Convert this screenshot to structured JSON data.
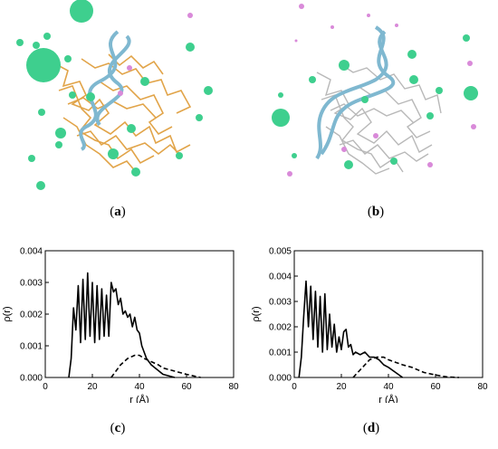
{
  "captions": {
    "a": {
      "open": "(",
      "letter": "a",
      "close": ")"
    },
    "b": {
      "open": "(",
      "letter": "b",
      "close": ")"
    },
    "c": {
      "open": "(",
      "letter": "c",
      "close": ")"
    },
    "d": {
      "open": "(",
      "letter": "d",
      "close": ")"
    }
  },
  "colors": {
    "ion_green": "#3ecf8e",
    "ion_pink": "#d98ad9",
    "dna": "#7fb8d0",
    "polymer_a": "#e0a040",
    "polymer_b": "#b8b8b8"
  },
  "chart_data": [
    {
      "panel": "c",
      "type": "line",
      "xlabel": "r (Å)",
      "ylabel": "ρ(r)",
      "xlim": [
        0,
        80
      ],
      "ylim": [
        0,
        0.004
      ],
      "xticks": [
        "0",
        "20",
        "40",
        "60",
        "80"
      ],
      "yticks": [
        "0.000",
        "0.001",
        "0.002",
        "0.003",
        "0.004"
      ],
      "series": [
        {
          "style": "solid",
          "x": [
            10,
            11,
            12,
            13,
            14,
            15,
            16,
            17,
            18,
            19,
            20,
            21,
            22,
            23,
            24,
            25,
            26,
            27,
            28,
            29,
            30,
            31,
            32,
            33,
            34,
            35,
            36,
            37,
            38,
            39,
            40,
            41,
            42,
            43,
            45,
            50,
            55
          ],
          "y": [
            0.0,
            0.0006,
            0.0022,
            0.0015,
            0.0029,
            0.0011,
            0.0031,
            0.0012,
            0.0033,
            0.0013,
            0.003,
            0.0011,
            0.0029,
            0.0012,
            0.0028,
            0.0013,
            0.0026,
            0.0013,
            0.003,
            0.0027,
            0.0028,
            0.0023,
            0.0025,
            0.002,
            0.0021,
            0.0019,
            0.002,
            0.0016,
            0.0019,
            0.0015,
            0.0014,
            0.001,
            0.0008,
            0.0006,
            0.0004,
            0.0001,
            0.0
          ]
        },
        {
          "style": "dashed",
          "x": [
            28,
            30,
            32,
            35,
            38,
            40,
            42,
            45,
            48,
            50,
            55,
            60,
            63,
            66
          ],
          "y": [
            0.0,
            0.0002,
            0.0004,
            0.0006,
            0.0007,
            0.0007,
            0.0006,
            0.0005,
            0.0004,
            0.0003,
            0.0002,
            0.0001,
            5e-05,
            0.0
          ]
        }
      ]
    },
    {
      "panel": "d",
      "type": "line",
      "xlabel": "r (Å)",
      "ylabel": "ρ(r)",
      "xlim": [
        0,
        80
      ],
      "ylim": [
        0,
        0.005
      ],
      "xticks": [
        "0",
        "20",
        "40",
        "60",
        "80"
      ],
      "yticks": [
        "0.000",
        "0.001",
        "0.002",
        "0.003",
        "0.004",
        "0.005"
      ],
      "series": [
        {
          "style": "solid",
          "x": [
            2,
            3,
            4,
            5,
            6,
            7,
            8,
            9,
            10,
            11,
            12,
            13,
            14,
            15,
            16,
            17,
            18,
            19,
            20,
            21,
            22,
            23,
            24,
            25,
            26,
            28,
            30,
            32,
            34,
            36,
            38,
            40,
            43,
            46
          ],
          "y": [
            0.0,
            0.0008,
            0.0024,
            0.0038,
            0.002,
            0.0036,
            0.0015,
            0.0034,
            0.0012,
            0.0032,
            0.001,
            0.0033,
            0.0011,
            0.0025,
            0.0012,
            0.0021,
            0.001,
            0.0016,
            0.0011,
            0.0018,
            0.0019,
            0.0012,
            0.0013,
            0.0009,
            0.001,
            0.0009,
            0.001,
            0.0008,
            0.0008,
            0.0007,
            0.0005,
            0.0004,
            0.0002,
            0.0
          ]
        },
        {
          "style": "dashed",
          "x": [
            25,
            28,
            30,
            32,
            35,
            38,
            40,
            43,
            46,
            50,
            55,
            60,
            65,
            70
          ],
          "y": [
            0.0,
            0.0003,
            0.0005,
            0.0007,
            0.0008,
            0.0008,
            0.0007,
            0.0006,
            0.0005,
            0.0004,
            0.0002,
            0.0001,
            2e-05,
            0.0
          ]
        }
      ]
    }
  ]
}
